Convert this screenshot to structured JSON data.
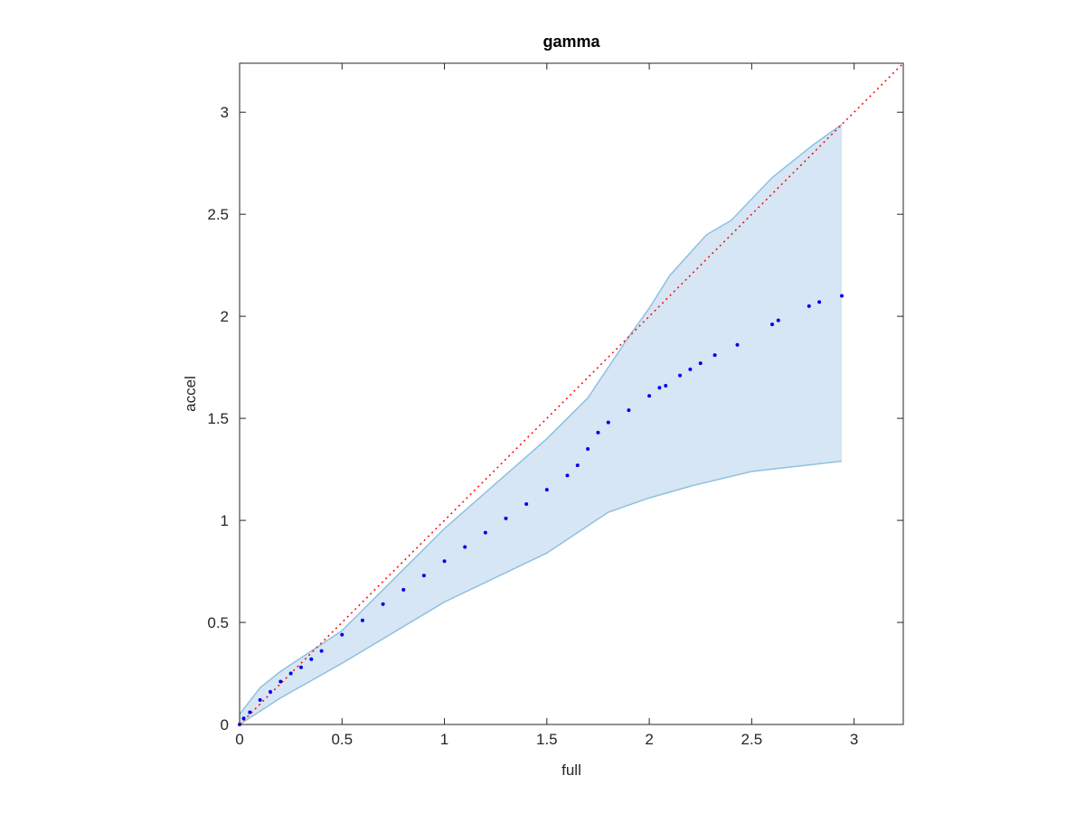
{
  "chart_data": {
    "type": "scatter",
    "title": "gamma",
    "x_label": "full",
    "y_label": "accel",
    "xlim": [
      0,
      3.24
    ],
    "ylim": [
      0,
      3.24
    ],
    "xticks": [
      0,
      0.5,
      1,
      1.5,
      2,
      2.5,
      3
    ],
    "yticks": [
      0,
      0.5,
      1,
      1.5,
      2,
      2.5,
      3
    ],
    "grid": false,
    "series": [
      {
        "color": "#0000ee",
        "x": [
          0,
          0.02,
          0.05,
          0.1,
          0.15,
          0.2,
          0.25,
          0.3,
          0.35,
          0.4,
          0.5,
          0.6,
          0.7,
          0.8,
          0.9,
          1.0,
          1.1,
          1.2,
          1.3,
          1.4,
          1.5,
          1.6,
          1.65,
          1.7,
          1.75,
          1.8,
          1.9,
          2.0,
          2.05,
          2.08,
          2.15,
          2.2,
          2.25,
          2.32,
          2.43,
          2.6,
          2.63,
          2.78,
          2.83,
          2.94
        ],
        "values": [
          0,
          0.03,
          0.06,
          0.12,
          0.16,
          0.21,
          0.25,
          0.28,
          0.32,
          0.36,
          0.44,
          0.51,
          0.59,
          0.66,
          0.73,
          0.8,
          0.87,
          0.94,
          1.01,
          1.08,
          1.15,
          1.22,
          1.27,
          1.35,
          1.43,
          1.48,
          1.54,
          1.61,
          1.65,
          1.66,
          1.71,
          1.74,
          1.77,
          1.81,
          1.86,
          1.96,
          1.98,
          2.05,
          2.07,
          2.1
        ]
      }
    ],
    "band": {
      "color": "#d6e6f4",
      "edge_color": "#8fc0e0",
      "upper": {
        "x": [
          0,
          0.1,
          0.2,
          0.5,
          0.6,
          1.0,
          1.5,
          1.7,
          1.8,
          1.9,
          2.0,
          2.1,
          2.28,
          2.4,
          2.6,
          2.8,
          2.94
        ],
        "y": [
          0.05,
          0.18,
          0.26,
          0.46,
          0.56,
          0.96,
          1.4,
          1.6,
          1.75,
          1.9,
          2.04,
          2.2,
          2.4,
          2.47,
          2.68,
          2.84,
          2.94
        ]
      },
      "lower": {
        "x": [
          0,
          0.2,
          0.5,
          1.0,
          1.5,
          1.8,
          2.0,
          2.21,
          2.5,
          2.94
        ],
        "y": [
          0,
          0.13,
          0.3,
          0.6,
          0.84,
          1.04,
          1.11,
          1.17,
          1.24,
          1.29
        ]
      }
    },
    "reference_line": {
      "color": "#ff0000",
      "x": [
        0,
        3.24
      ],
      "y": [
        0,
        3.24
      ]
    }
  }
}
